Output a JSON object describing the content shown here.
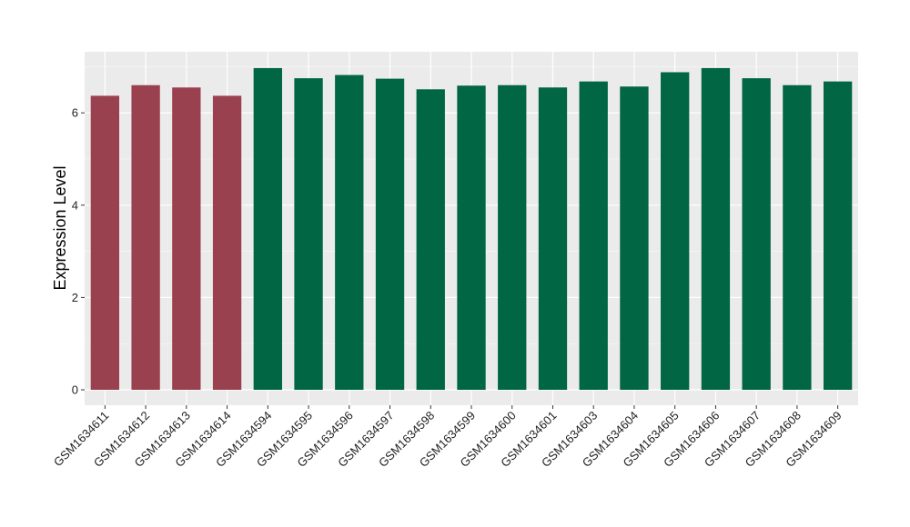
{
  "chart_data": {
    "type": "bar",
    "title": "",
    "xlabel": "",
    "ylabel": "Expression Level",
    "ylim": [
      0,
      7.3
    ],
    "yticks": [
      0,
      2,
      4,
      6
    ],
    "grid": true,
    "legend": "none",
    "colors": {
      "panel_background": "#ebebeb",
      "grid_major": "#ffffff",
      "group_a": "#9a4150",
      "group_b": "#006644"
    },
    "categories": [
      "GSM1634611",
      "GSM1634612",
      "GSM1634613",
      "GSM1634614",
      "GSM1634594",
      "GSM1634595",
      "GSM1634596",
      "GSM1634597",
      "GSM1634598",
      "GSM1634599",
      "GSM1634600",
      "GSM1634601",
      "GSM1634603",
      "GSM1634604",
      "GSM1634605",
      "GSM1634606",
      "GSM1634607",
      "GSM1634608",
      "GSM1634609"
    ],
    "values": [
      6.37,
      6.6,
      6.55,
      6.37,
      6.97,
      6.75,
      6.82,
      6.74,
      6.51,
      6.59,
      6.6,
      6.55,
      6.68,
      6.57,
      6.88,
      6.97,
      6.75,
      6.6,
      6.68
    ],
    "bar_groups": [
      "a",
      "a",
      "a",
      "a",
      "b",
      "b",
      "b",
      "b",
      "b",
      "b",
      "b",
      "b",
      "b",
      "b",
      "b",
      "b",
      "b",
      "b",
      "b"
    ]
  }
}
